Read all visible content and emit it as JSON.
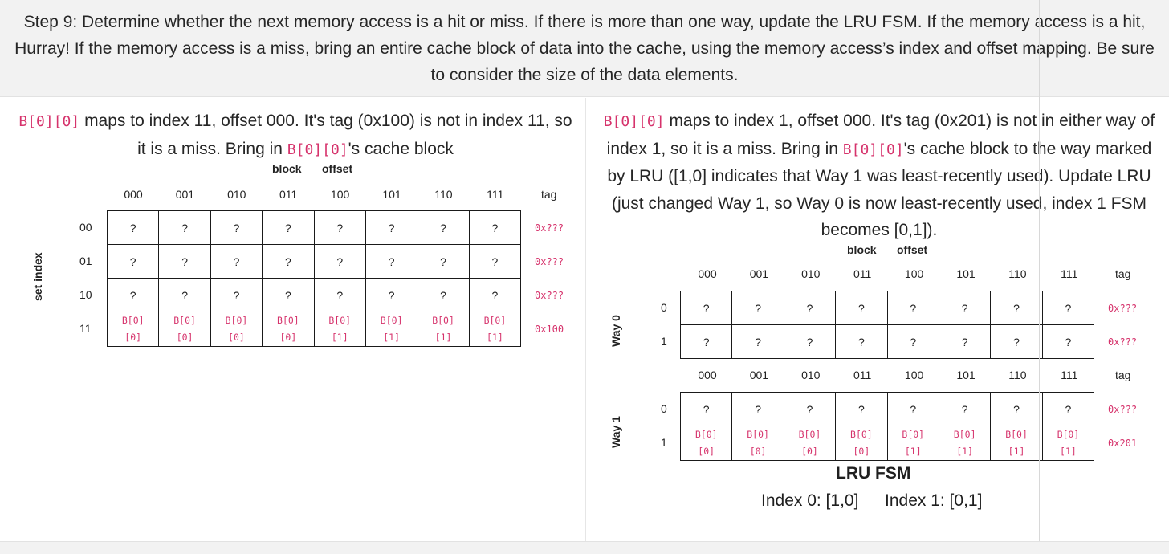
{
  "step": {
    "text": "Step 9: Determine whether the next memory access is a hit or miss. If there is more than one way, update the LRU FSM. If the memory access is a hit, Hurray! If the memory access is a miss, bring an entire cache block of data into the cache, using the memory access’s index and offset mapping. Be sure to consider the size of the data elements."
  },
  "left": {
    "code1": "B[0][0]",
    "text1": " maps to index 11, offset 000. It's tag (0x100) is not in index 11, so it is a miss. Bring in ",
    "code2": "B[0][0]",
    "text2": "'s cache block",
    "block_label": "block",
    "offset_label": "offset",
    "set_index_label": "set index",
    "tag_header": "tag",
    "columns": [
      "000",
      "001",
      "010",
      "011",
      "100",
      "101",
      "110",
      "111"
    ],
    "rows": [
      {
        "index": "00",
        "cells": [
          "?",
          "?",
          "?",
          "?",
          "?",
          "?",
          "?",
          "?"
        ],
        "tag": "0x???"
      },
      {
        "index": "01",
        "cells": [
          "?",
          "?",
          "?",
          "?",
          "?",
          "?",
          "?",
          "?"
        ],
        "tag": "0x???"
      },
      {
        "index": "10",
        "cells": [
          "?",
          "?",
          "?",
          "?",
          "?",
          "?",
          "?",
          "?"
        ],
        "tag": "0x???"
      },
      {
        "index": "11",
        "cells": [
          [
            "B[0]",
            "[0]"
          ],
          [
            "B[0]",
            "[0]"
          ],
          [
            "B[0]",
            "[0]"
          ],
          [
            "B[0]",
            "[0]"
          ],
          [
            "B[0]",
            "[1]"
          ],
          [
            "B[0]",
            "[1]"
          ],
          [
            "B[0]",
            "[1]"
          ],
          [
            "B[0]",
            "[1]"
          ]
        ],
        "tag": "0x100"
      }
    ]
  },
  "right": {
    "code1": "B[0][0]",
    "text1": " maps to index 1, offset 000. It's tag (0x201) is not in either way of index 1, so it is a miss. Bring in ",
    "code2": "B[0][0]",
    "text2": "'s cache block to the way marked by LRU ([1,0] indicates that Way 1 was least-recently used). Update LRU (just changed Way 1, so Way 0 is now least-recently used, index 1 FSM becomes [0,1]).",
    "block_label": "block",
    "offset_label": "offset",
    "tag_header": "tag",
    "columns": [
      "000",
      "001",
      "010",
      "011",
      "100",
      "101",
      "110",
      "111"
    ],
    "ways": [
      {
        "label": "Way 0",
        "rows": [
          {
            "index": "0",
            "cells": [
              "?",
              "?",
              "?",
              "?",
              "?",
              "?",
              "?",
              "?"
            ],
            "tag": "0x???"
          },
          {
            "index": "1",
            "cells": [
              "?",
              "?",
              "?",
              "?",
              "?",
              "?",
              "?",
              "?"
            ],
            "tag": "0x???"
          }
        ]
      },
      {
        "label": "Way 1",
        "rows": [
          {
            "index": "0",
            "cells": [
              "?",
              "?",
              "?",
              "?",
              "?",
              "?",
              "?",
              "?"
            ],
            "tag": "0x???"
          },
          {
            "index": "1",
            "cells": [
              [
                "B[0]",
                "[0]"
              ],
              [
                "B[0]",
                "[0]"
              ],
              [
                "B[0]",
                "[0]"
              ],
              [
                "B[0]",
                "[0]"
              ],
              [
                "B[0]",
                "[1]"
              ],
              [
                "B[0]",
                "[1]"
              ],
              [
                "B[0]",
                "[1]"
              ],
              [
                "B[0]",
                "[1]"
              ]
            ],
            "tag": "0x201"
          }
        ]
      }
    ],
    "lru_title": "LRU FSM",
    "lru_index0": "Index 0: [1,0]",
    "lru_index1": "Index 1: [0,1]"
  }
}
